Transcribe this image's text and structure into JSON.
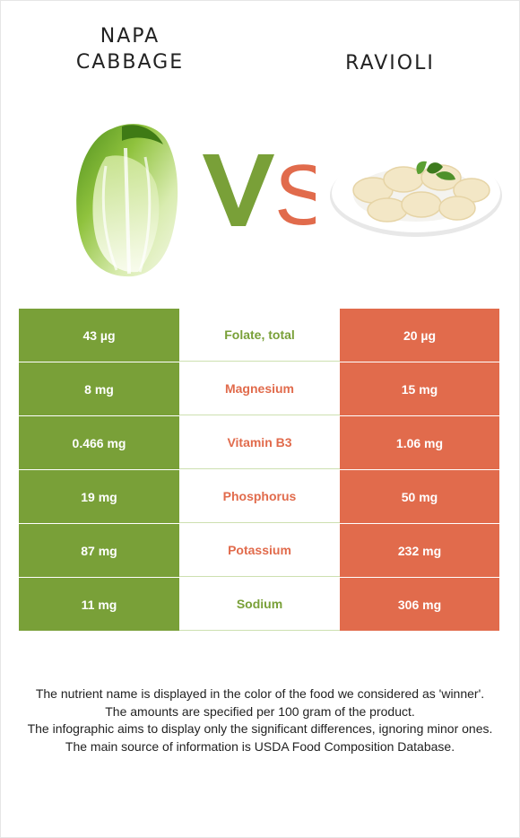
{
  "header": {
    "left_food": "NAPA\nCABBAGE",
    "left_food_line1": "NAPA",
    "left_food_line2": "CABBAGE",
    "right_food": "RAVIOLI",
    "vs_text": "VS"
  },
  "colors": {
    "left_winner": "#79a038",
    "right_winner": "#e16b4c"
  },
  "rows": [
    {
      "left": "43 µg",
      "nutrient": "Folate, total",
      "right": "20 µg",
      "winner": "left"
    },
    {
      "left": "8 mg",
      "nutrient": "Magnesium",
      "right": "15 mg",
      "winner": "right"
    },
    {
      "left": "0.466 mg",
      "nutrient": "Vitamin B3",
      "right": "1.06 mg",
      "winner": "right"
    },
    {
      "left": "19 mg",
      "nutrient": "Phosphorus",
      "right": "50 mg",
      "winner": "right"
    },
    {
      "left": "87 mg",
      "nutrient": "Potassium",
      "right": "232 mg",
      "winner": "right"
    },
    {
      "left": "11 mg",
      "nutrient": "Sodium",
      "right": "306 mg",
      "winner": "left"
    }
  ],
  "footnote": {
    "line1": "The nutrient name is displayed in the color of the food we considered as 'winner'.",
    "line2": "The amounts are specified per 100 gram of the product.",
    "line3": "The infographic aims to display only the significant differences, ignoring minor ones.",
    "line4": "The main source of information is USDA Food Composition Database."
  }
}
